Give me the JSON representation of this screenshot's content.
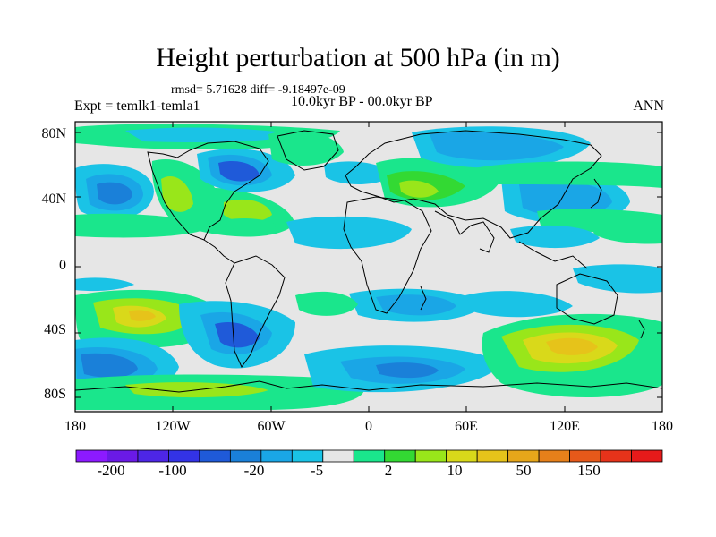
{
  "title": "Height perturbation at 500 hPa (in m)",
  "stats_text": "rmsd= 5.71628 diff= -9.18497e-09",
  "period_text": "10.0kyr BP - 00.0kyr BP",
  "experiment_text": "Expt = temlk1-temla1",
  "season_text": "ANN",
  "map": {
    "lat_ticks": [
      "80N",
      "40N",
      "0",
      "40S",
      "80S"
    ],
    "lon_ticks": [
      "180",
      "120W",
      "60W",
      "0",
      "60E",
      "120E",
      "180"
    ],
    "background_color": "#e6e6e6"
  },
  "colorbar": {
    "colors": [
      "#8c1aff",
      "#6a1ae6",
      "#4d26e6",
      "#3333e6",
      "#1f5ad9",
      "#1a80d9",
      "#1aa6e6",
      "#1ac3e6",
      "#e6e6e6",
      "#1ae68c",
      "#33d933",
      "#99e61a",
      "#d9d91a",
      "#e6c31a",
      "#e6a61a",
      "#e6801a",
      "#e6591a",
      "#e6331a",
      "#e61a1a"
    ],
    "labels": [
      "-200",
      "-100",
      "-20",
      "-5",
      "2",
      "10",
      "50",
      "150"
    ]
  },
  "fill_colors": {
    "green": "#1ae68c",
    "lime": "#33d933",
    "yellowgreen": "#99e61a",
    "yellow": "#d9d91a",
    "orange": "#e6c31a",
    "lightblue": "#1ac3e6",
    "blue": "#1aa6e6",
    "midblue": "#1a80d9",
    "darkblue": "#1f5ad9",
    "deepblue": "#3333e6"
  }
}
